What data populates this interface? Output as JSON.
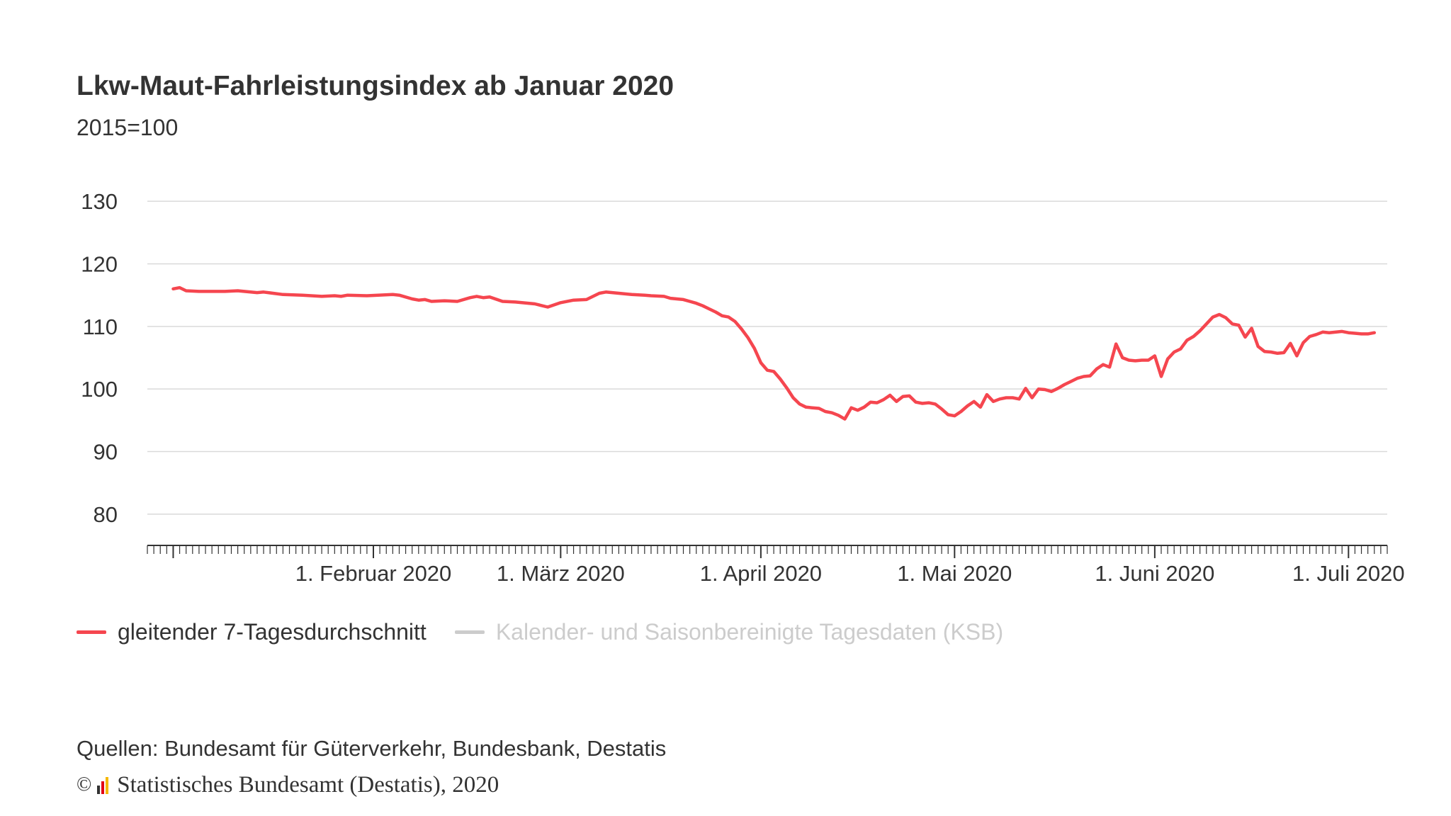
{
  "header": {
    "title": "Lkw-Maut-Fahrleistungsindex ab Januar 2020",
    "subtitle": "2015=100"
  },
  "footer": {
    "source": "Quellen: Bundesamt für Güterverkehr, Bundesbank, Destatis",
    "copyright_symbol": "©",
    "copyright_text": "Statistisches Bundesamt (Destatis), 2020",
    "logo_icon": "destatis-logo-icon",
    "logo_colors": [
      "#333333",
      "#e30613",
      "#f5b800"
    ]
  },
  "colors": {
    "series_line": "#f5464f",
    "inactive_series": "#cccccc",
    "grid": "#d9d9d9",
    "axis": "#333333",
    "text": "#333333"
  },
  "chart_data": {
    "type": "line",
    "title": "Lkw-Maut-Fahrleistungsindex ab Januar 2020",
    "subtitle": "2015=100",
    "xlabel": "",
    "ylabel": "",
    "ylim": [
      75,
      135
    ],
    "yticks": [
      80,
      90,
      100,
      110,
      120,
      130
    ],
    "xlim": [
      "2019-12-28",
      "2020-07-07"
    ],
    "xticks": [
      {
        "date": "2020-02-01",
        "label": "1. Februar 2020"
      },
      {
        "date": "2020-03-01",
        "label": "1. März 2020"
      },
      {
        "date": "2020-04-01",
        "label": "1. April 2020"
      },
      {
        "date": "2020-05-01",
        "label": "1. Mai 2020"
      },
      {
        "date": "2020-06-01",
        "label": "1. Juni 2020"
      },
      {
        "date": "2020-07-01",
        "label": "1. Juli 2020"
      }
    ],
    "grid": true,
    "legend_position": "bottom-left",
    "series": [
      {
        "name": "gleitender 7-Tagesdurchschnitt",
        "color": "#f5464f",
        "visible": true,
        "points": [
          [
            "2020-01-01",
            116.0
          ],
          [
            "2020-01-02",
            116.2
          ],
          [
            "2020-01-03",
            115.7
          ],
          [
            "2020-01-05",
            115.6
          ],
          [
            "2020-01-09",
            115.6
          ],
          [
            "2020-01-11",
            115.7
          ],
          [
            "2020-01-14",
            115.4
          ],
          [
            "2020-01-15",
            115.5
          ],
          [
            "2020-01-18",
            115.1
          ],
          [
            "2020-01-21",
            115.0
          ],
          [
            "2020-01-24",
            114.8
          ],
          [
            "2020-01-26",
            114.9
          ],
          [
            "2020-01-27",
            114.8
          ],
          [
            "2020-01-28",
            115.0
          ],
          [
            "2020-01-31",
            114.9
          ],
          [
            "2020-02-04",
            115.1
          ],
          [
            "2020-02-05",
            115.0
          ],
          [
            "2020-02-07",
            114.4
          ],
          [
            "2020-02-08",
            114.2
          ],
          [
            "2020-02-09",
            114.3
          ],
          [
            "2020-02-10",
            114.0
          ],
          [
            "2020-02-12",
            114.1
          ],
          [
            "2020-02-14",
            114.0
          ],
          [
            "2020-02-16",
            114.6
          ],
          [
            "2020-02-17",
            114.8
          ],
          [
            "2020-02-18",
            114.6
          ],
          [
            "2020-02-19",
            114.7
          ],
          [
            "2020-02-21",
            114.0
          ],
          [
            "2020-02-23",
            113.9
          ],
          [
            "2020-02-26",
            113.6
          ],
          [
            "2020-02-28",
            113.1
          ],
          [
            "2020-03-01",
            113.8
          ],
          [
            "2020-03-03",
            114.2
          ],
          [
            "2020-03-05",
            114.3
          ],
          [
            "2020-03-07",
            115.3
          ],
          [
            "2020-03-08",
            115.5
          ],
          [
            "2020-03-09",
            115.4
          ],
          [
            "2020-03-10",
            115.3
          ],
          [
            "2020-03-12",
            115.1
          ],
          [
            "2020-03-14",
            115.0
          ],
          [
            "2020-03-15",
            114.9
          ],
          [
            "2020-03-17",
            114.8
          ],
          [
            "2020-03-18",
            114.5
          ],
          [
            "2020-03-20",
            114.3
          ],
          [
            "2020-03-21",
            114.0
          ],
          [
            "2020-03-22",
            113.7
          ],
          [
            "2020-03-23",
            113.3
          ],
          [
            "2020-03-24",
            112.8
          ],
          [
            "2020-03-25",
            112.3
          ],
          [
            "2020-03-26",
            111.7
          ],
          [
            "2020-03-27",
            111.5
          ],
          [
            "2020-03-28",
            110.8
          ],
          [
            "2020-03-29",
            109.6
          ],
          [
            "2020-03-30",
            108.2
          ],
          [
            "2020-03-31",
            106.5
          ],
          [
            "2020-04-01",
            104.2
          ],
          [
            "2020-04-02",
            103.0
          ],
          [
            "2020-04-03",
            102.8
          ],
          [
            "2020-04-04",
            101.6
          ],
          [
            "2020-04-05",
            100.2
          ],
          [
            "2020-04-06",
            98.6
          ],
          [
            "2020-04-07",
            97.6
          ],
          [
            "2020-04-08",
            97.1
          ],
          [
            "2020-04-09",
            97.0
          ],
          [
            "2020-04-10",
            96.9
          ],
          [
            "2020-04-11",
            96.4
          ],
          [
            "2020-04-12",
            96.2
          ],
          [
            "2020-04-13",
            95.8
          ],
          [
            "2020-04-14",
            95.2
          ],
          [
            "2020-04-15",
            97.0
          ],
          [
            "2020-04-16",
            96.6
          ],
          [
            "2020-04-17",
            97.1
          ],
          [
            "2020-04-18",
            97.9
          ],
          [
            "2020-04-19",
            97.8
          ],
          [
            "2020-04-20",
            98.3
          ],
          [
            "2020-04-21",
            99.0
          ],
          [
            "2020-04-22",
            98.0
          ],
          [
            "2020-04-23",
            98.8
          ],
          [
            "2020-04-24",
            98.9
          ],
          [
            "2020-04-25",
            97.9
          ],
          [
            "2020-04-26",
            97.7
          ],
          [
            "2020-04-27",
            97.8
          ],
          [
            "2020-04-28",
            97.6
          ],
          [
            "2020-04-29",
            96.8
          ],
          [
            "2020-04-30",
            95.9
          ],
          [
            "2020-05-01",
            95.7
          ],
          [
            "2020-05-02",
            96.4
          ],
          [
            "2020-05-03",
            97.3
          ],
          [
            "2020-05-04",
            98.0
          ],
          [
            "2020-05-05",
            97.1
          ],
          [
            "2020-05-06",
            99.1
          ],
          [
            "2020-05-07",
            98.0
          ],
          [
            "2020-05-08",
            98.4
          ],
          [
            "2020-05-09",
            98.6
          ],
          [
            "2020-05-10",
            98.6
          ],
          [
            "2020-05-11",
            98.4
          ],
          [
            "2020-05-12",
            100.1
          ],
          [
            "2020-05-13",
            98.6
          ],
          [
            "2020-05-14",
            100.0
          ],
          [
            "2020-05-15",
            99.9
          ],
          [
            "2020-05-16",
            99.6
          ],
          [
            "2020-05-17",
            100.1
          ],
          [
            "2020-05-18",
            100.7
          ],
          [
            "2020-05-19",
            101.2
          ],
          [
            "2020-05-20",
            101.7
          ],
          [
            "2020-05-21",
            102.0
          ],
          [
            "2020-05-22",
            102.1
          ],
          [
            "2020-05-23",
            103.2
          ],
          [
            "2020-05-24",
            103.9
          ],
          [
            "2020-05-25",
            103.5
          ],
          [
            "2020-05-26",
            107.2
          ],
          [
            "2020-05-27",
            105.0
          ],
          [
            "2020-05-28",
            104.6
          ],
          [
            "2020-05-29",
            104.5
          ],
          [
            "2020-05-30",
            104.6
          ],
          [
            "2020-05-31",
            104.6
          ],
          [
            "2020-06-01",
            105.3
          ],
          [
            "2020-06-02",
            102.0
          ],
          [
            "2020-06-03",
            104.8
          ],
          [
            "2020-06-04",
            105.9
          ],
          [
            "2020-06-05",
            106.4
          ],
          [
            "2020-06-06",
            107.8
          ],
          [
            "2020-06-07",
            108.4
          ],
          [
            "2020-06-08",
            109.3
          ],
          [
            "2020-06-09",
            110.4
          ],
          [
            "2020-06-10",
            111.5
          ],
          [
            "2020-06-11",
            111.9
          ],
          [
            "2020-06-12",
            111.4
          ],
          [
            "2020-06-13",
            110.4
          ],
          [
            "2020-06-14",
            110.2
          ],
          [
            "2020-06-15",
            108.3
          ],
          [
            "2020-06-16",
            109.7
          ],
          [
            "2020-06-17",
            106.8
          ],
          [
            "2020-06-18",
            106.0
          ],
          [
            "2020-06-19",
            105.9
          ],
          [
            "2020-06-20",
            105.7
          ],
          [
            "2020-06-21",
            105.8
          ],
          [
            "2020-06-22",
            107.3
          ],
          [
            "2020-06-23",
            105.3
          ],
          [
            "2020-06-24",
            107.4
          ],
          [
            "2020-06-25",
            108.4
          ],
          [
            "2020-06-26",
            108.7
          ],
          [
            "2020-06-27",
            109.1
          ],
          [
            "2020-06-28",
            109.0
          ],
          [
            "2020-06-30",
            109.2
          ],
          [
            "2020-07-01",
            109.0
          ],
          [
            "2020-07-02",
            108.9
          ],
          [
            "2020-07-03",
            108.8
          ],
          [
            "2020-07-04",
            108.8
          ],
          [
            "2020-07-05",
            109.0
          ]
        ]
      },
      {
        "name": "Kalender- und Saisonbereinigte Tagesdaten (KSB)",
        "color": "#cccccc",
        "visible": false,
        "points": []
      }
    ]
  }
}
